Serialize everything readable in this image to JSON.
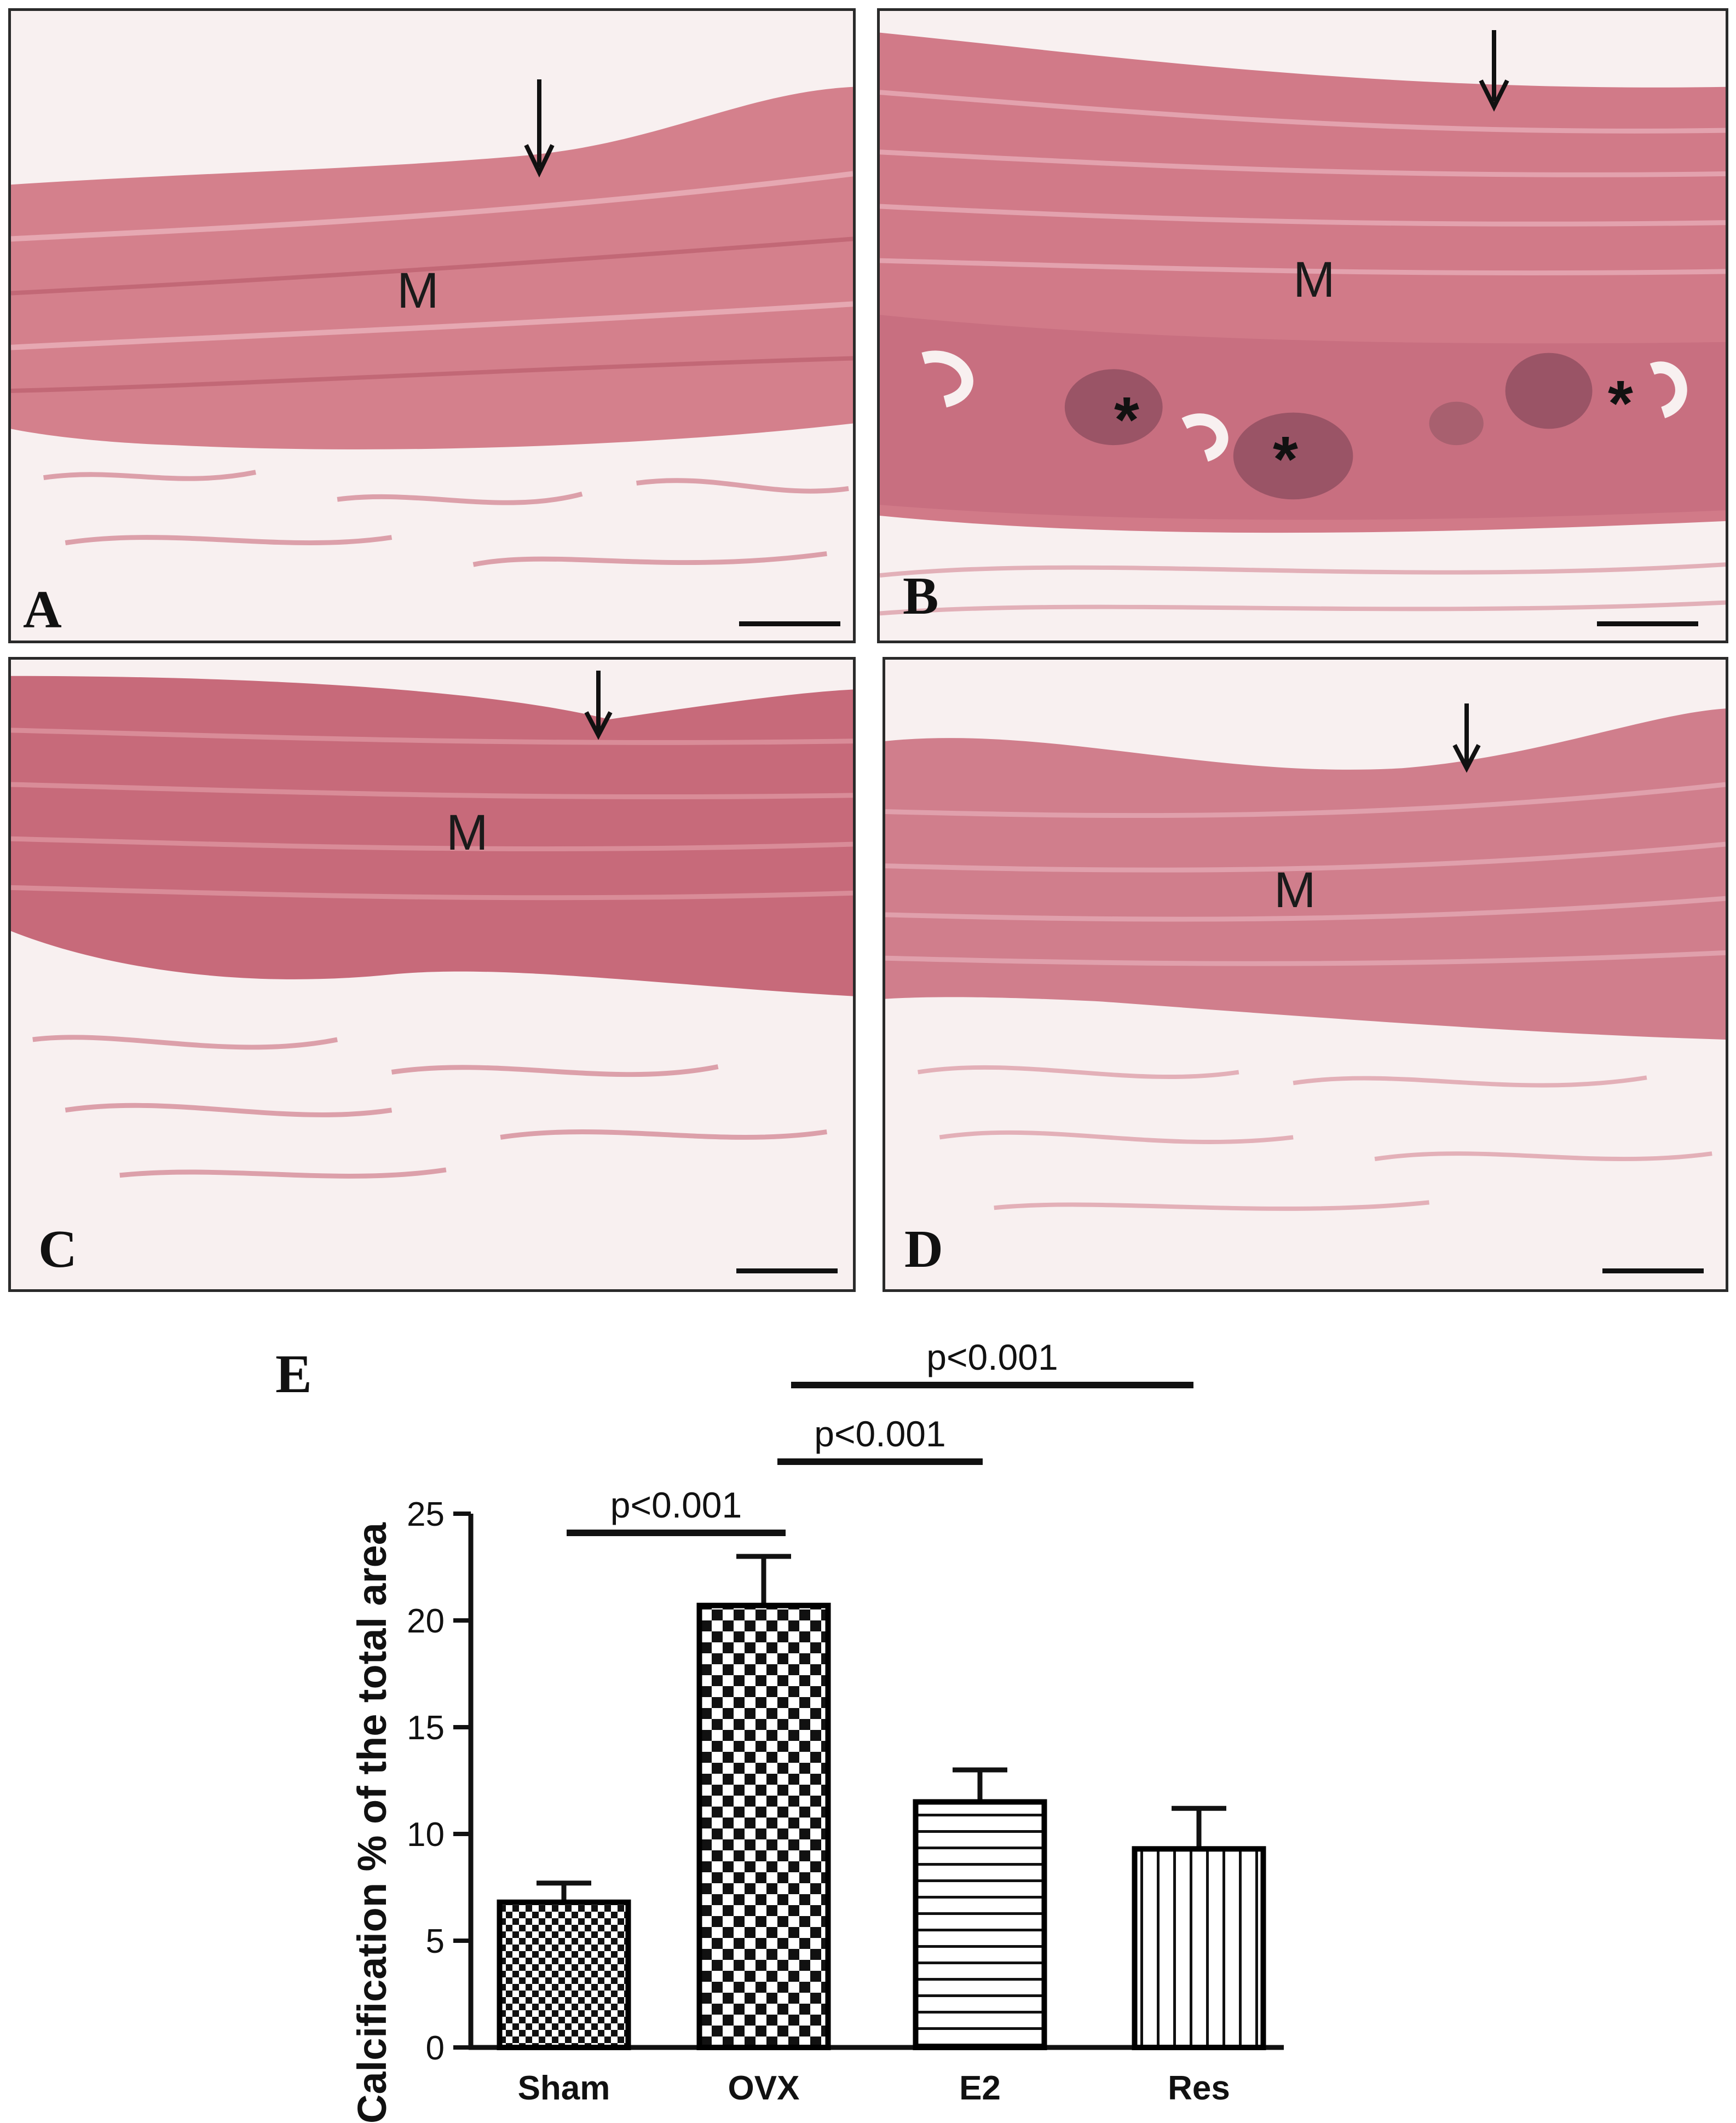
{
  "panels": [
    {
      "letter": "A",
      "region_label": "M",
      "stars": []
    },
    {
      "letter": "B",
      "region_label": "M",
      "stars": [
        "*",
        "*",
        "*"
      ]
    },
    {
      "letter": "C",
      "region_label": "M",
      "stars": []
    },
    {
      "letter": "D",
      "region_label": "M",
      "stars": []
    }
  ],
  "chart_panel_letter": "E",
  "colors": {
    "tissue_pink": "#d6808c",
    "tissue_dark": "#b85c6e",
    "background_light": "#f6eeee",
    "bar_outline": "#000000"
  },
  "chart_data": {
    "type": "bar",
    "categories": [
      "Sham",
      "OVX",
      "E2",
      "Res"
    ],
    "values": [
      6.8,
      20.7,
      11.5,
      9.3
    ],
    "errors": [
      0.9,
      2.3,
      1.5,
      1.9
    ],
    "patterns": [
      "fine-checker",
      "coarse-checker",
      "horizontal-lines",
      "vertical-lines"
    ],
    "ylabel": "Calcification % of the total area",
    "ylim": [
      0,
      25
    ],
    "yticks": [
      0,
      5,
      10,
      15,
      20,
      25
    ],
    "significance": [
      {
        "from": "Sham",
        "to": "OVX",
        "label": "p<0.001"
      },
      {
        "from": "OVX",
        "to": "E2",
        "label": "p<0.001"
      },
      {
        "from": "OVX",
        "to": "Res",
        "label": "p<0.001"
      }
    ]
  }
}
